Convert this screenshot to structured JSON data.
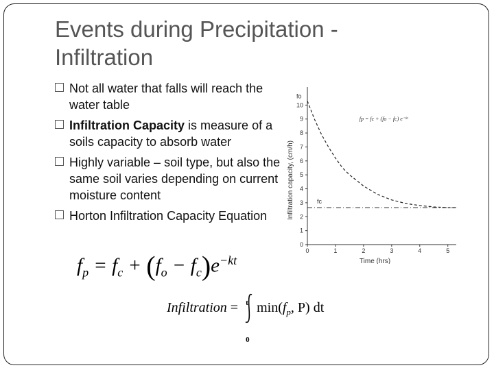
{
  "title": "Events during Precipitation  - Infiltration",
  "bullets": {
    "b1": "Not all water that falls will reach the water table",
    "b2_bold": "Infiltration Capacity",
    "b2_rest": " is  measure of a soils capacity to absorb water",
    "b3": "Highly variable – soil type, but also the same soil varies depending on current moisture content",
    "b4": "Horton Infiltration Capacity Equation"
  },
  "equations": {
    "horton": {
      "fp": "f",
      "p_sub": "p",
      "eq": " = ",
      "fc": "f",
      "c_sub": "c",
      "plus": " + ",
      "fo": "f",
      "o_sub": "o",
      "minus": " − ",
      "fc2": "f",
      "c2_sub": "c",
      "e": "e",
      "exp": "−kt"
    },
    "infiltration": {
      "lhs": "Infiltration",
      "eq": " = ",
      "upper": "t",
      "lower": "0",
      "fn": "min(",
      "fp": "f",
      "p_sub": "p",
      "rest": ", P) dt"
    }
  },
  "chart_data": {
    "type": "line",
    "ylabel": "Infiltration capacity, (cm/h)",
    "xlabel": "Time (hrs)",
    "x_ticks": [
      "0",
      "1",
      "2",
      "3",
      "4",
      "5"
    ],
    "y_ticks": [
      "0",
      "1",
      "2",
      "3",
      "4",
      "5",
      "6",
      "7",
      "8",
      "9",
      "10"
    ],
    "xlim": [
      0,
      5.3
    ],
    "ylim": [
      0,
      11
    ],
    "fo_label": "fo",
    "fc_label": "fc",
    "equation_label": "fp = fc + (fo − fc) e⁻ᵏᵗ",
    "series": [
      {
        "x": [
          0,
          0.25,
          0.5,
          0.75,
          1,
          1.25,
          1.5,
          1.75,
          2,
          2.25,
          2.5,
          2.75,
          3,
          3.5,
          4,
          4.5,
          5,
          5.3
        ],
        "y": [
          10.3,
          9.0,
          7.9,
          7.0,
          6.2,
          5.5,
          5.0,
          4.6,
          4.2,
          3.9,
          3.6,
          3.4,
          3.2,
          2.95,
          2.8,
          2.7,
          2.65,
          2.65
        ]
      }
    ],
    "fc_value": 2.65
  }
}
